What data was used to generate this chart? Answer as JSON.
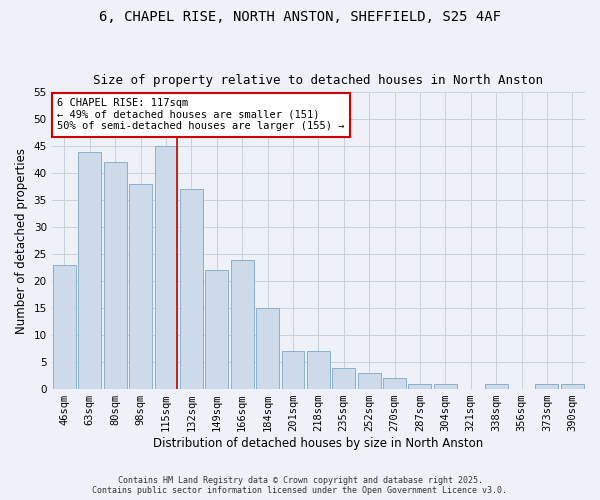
{
  "title": "6, CHAPEL RISE, NORTH ANSTON, SHEFFIELD, S25 4AF",
  "subtitle": "Size of property relative to detached houses in North Anston",
  "xlabel": "Distribution of detached houses by size in North Anston",
  "ylabel": "Number of detached properties",
  "bar_labels": [
    "46sqm",
    "63sqm",
    "80sqm",
    "98sqm",
    "115sqm",
    "132sqm",
    "149sqm",
    "166sqm",
    "184sqm",
    "201sqm",
    "218sqm",
    "235sqm",
    "252sqm",
    "270sqm",
    "287sqm",
    "304sqm",
    "321sqm",
    "338sqm",
    "356sqm",
    "373sqm",
    "390sqm"
  ],
  "bar_values": [
    23,
    44,
    42,
    38,
    45,
    37,
    22,
    24,
    15,
    7,
    7,
    4,
    3,
    2,
    1,
    1,
    0,
    1,
    0,
    1,
    1
  ],
  "bar_color": "#ccdaea",
  "bar_edgecolor": "#8ab0cc",
  "grid_color": "#c8d0dc",
  "background_color": "#eef2f8",
  "vline_color": "#cc0000",
  "annotation_text": "6 CHAPEL RISE: 117sqm\n← 49% of detached houses are smaller (151)\n50% of semi-detached houses are larger (155) →",
  "annotation_box_color": "#ffffff",
  "annotation_box_edgecolor": "#cc0000",
  "ylim": [
    0,
    55
  ],
  "yticks": [
    0,
    5,
    10,
    15,
    20,
    25,
    30,
    35,
    40,
    45,
    50,
    55
  ],
  "footnote": "Contains HM Land Registry data © Crown copyright and database right 2025.\nContains public sector information licensed under the Open Government Licence v3.0.",
  "title_fontsize": 10,
  "subtitle_fontsize": 9,
  "label_fontsize": 8.5,
  "tick_fontsize": 7.5,
  "annotation_fontsize": 7.5,
  "footnote_fontsize": 6
}
